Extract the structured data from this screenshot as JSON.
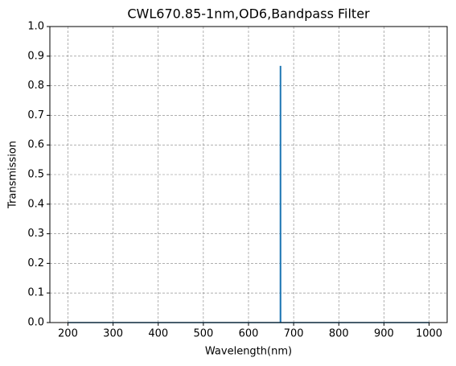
{
  "chart_data": {
    "type": "line",
    "title": "CWL670.85-1nm,OD6,Bandpass Filter",
    "x_label": "Wavelength(nm)",
    "y_label": "Transmission",
    "series": [
      {
        "color": "#1f77b4",
        "x": [
          200,
          670.3,
          670.4,
          671.3,
          671.4,
          1000
        ],
        "values": [
          0,
          0,
          0.865,
          0.865,
          0,
          0
        ]
      }
    ],
    "xlim": [
      160,
      1040
    ],
    "xticks": [
      200,
      300,
      400,
      500,
      600,
      700,
      800,
      900,
      1000
    ],
    "ylim": [
      0,
      1
    ],
    "yticks": [
      {
        "value": 0,
        "label": "0.0"
      },
      0.1,
      0.2,
      0.3,
      0.4,
      0.5,
      0.6,
      0.7,
      0.8,
      0.9,
      {
        "value": 1,
        "label": "1.0"
      }
    ],
    "grid": true
  }
}
